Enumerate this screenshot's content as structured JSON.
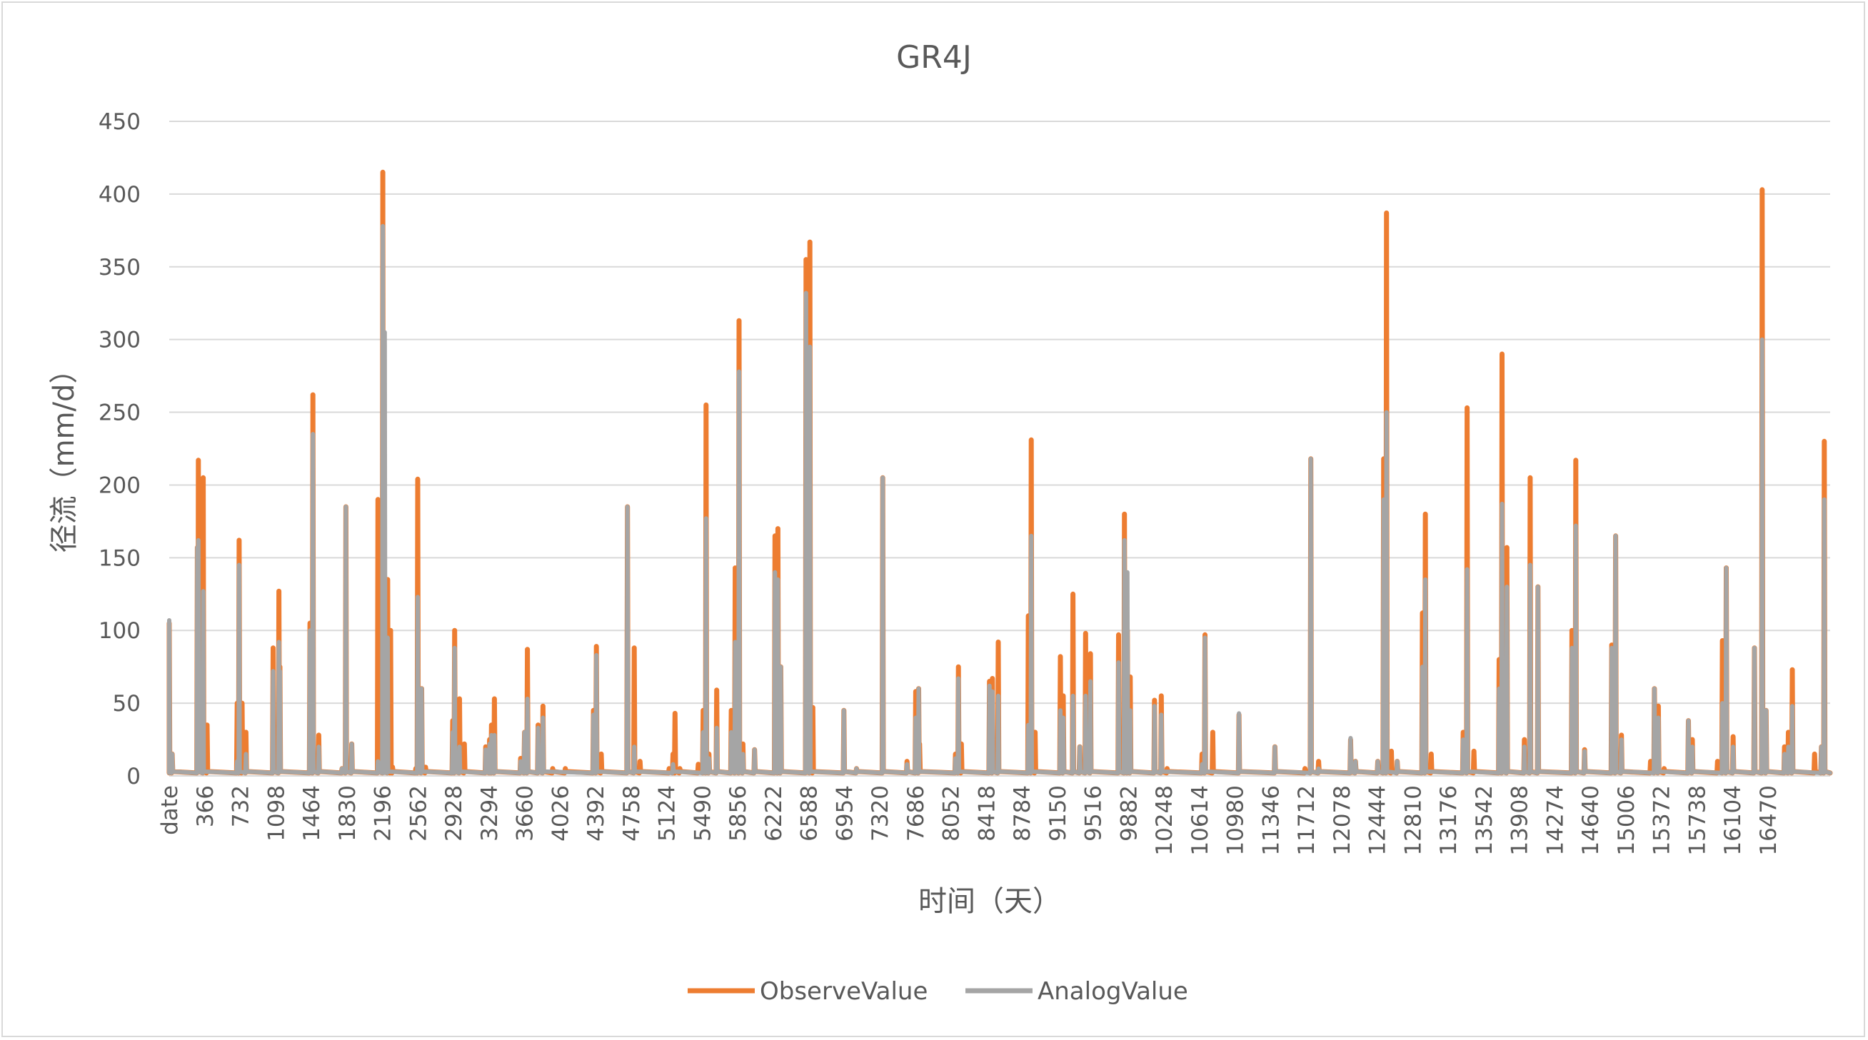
{
  "colors": {
    "observe": "#ED7D31",
    "analog": "#A5A5A5",
    "grid": "#D9D9D9",
    "text": "#595959"
  },
  "chart_data": {
    "type": "line",
    "title": "GR4J",
    "xlabel": "时间（天）",
    "ylabel": "径流（mm/d）",
    "ylim": [
      0,
      450
    ],
    "yticks": [
      0,
      50,
      100,
      150,
      200,
      250,
      300,
      350,
      400,
      450
    ],
    "xlim": [
      0,
      16800
    ],
    "xticks": [
      "date",
      "366",
      "732",
      "1098",
      "1464",
      "1830",
      "2196",
      "2562",
      "2928",
      "3294",
      "3660",
      "4026",
      "4392",
      "4758",
      "5124",
      "5490",
      "5856",
      "6222",
      "6588",
      "6954",
      "7320",
      "7686",
      "8052",
      "8418",
      "8784",
      "9150",
      "9516",
      "9882",
      "10248",
      "10614",
      "10980",
      "11346",
      "11712",
      "12078",
      "12444",
      "12810",
      "13176",
      "13542",
      "13908",
      "14274",
      "14640",
      "15006",
      "15372",
      "15738",
      "16104",
      "16470"
    ],
    "grid": "horizontal",
    "legend_position": "bottom",
    "series": [
      {
        "name": "ObserveValue",
        "peaks": [
          [
            0,
            105
          ],
          [
            30,
            15
          ],
          [
            290,
            157
          ],
          [
            300,
            217
          ],
          [
            350,
            205
          ],
          [
            390,
            35
          ],
          [
            700,
            50
          ],
          [
            720,
            162
          ],
          [
            750,
            50
          ],
          [
            790,
            30
          ],
          [
            1070,
            88
          ],
          [
            1130,
            127
          ],
          [
            1140,
            75
          ],
          [
            1450,
            105
          ],
          [
            1480,
            262
          ],
          [
            1540,
            28
          ],
          [
            1780,
            5
          ],
          [
            1820,
            185
          ],
          [
            1880,
            22
          ],
          [
            2150,
            190
          ],
          [
            2200,
            415
          ],
          [
            2250,
            135
          ],
          [
            2280,
            100
          ],
          [
            2300,
            6
          ],
          [
            2540,
            5
          ],
          [
            2560,
            204
          ],
          [
            2600,
            60
          ],
          [
            2640,
            6
          ],
          [
            2920,
            38
          ],
          [
            2940,
            100
          ],
          [
            2990,
            53
          ],
          [
            3040,
            22
          ],
          [
            3260,
            20
          ],
          [
            3300,
            25
          ],
          [
            3320,
            35
          ],
          [
            3350,
            53
          ],
          [
            3620,
            12
          ],
          [
            3660,
            30
          ],
          [
            3690,
            87
          ],
          [
            3800,
            35
          ],
          [
            3850,
            48
          ],
          [
            3950,
            5
          ],
          [
            4080,
            5
          ],
          [
            4370,
            45
          ],
          [
            4400,
            89
          ],
          [
            4450,
            15
          ],
          [
            4720,
            185
          ],
          [
            4790,
            88
          ],
          [
            4850,
            10
          ],
          [
            5150,
            5
          ],
          [
            5190,
            15
          ],
          [
            5210,
            43
          ],
          [
            5260,
            5
          ],
          [
            5450,
            8
          ],
          [
            5500,
            45
          ],
          [
            5530,
            255
          ],
          [
            5560,
            15
          ],
          [
            5640,
            59
          ],
          [
            5790,
            45
          ],
          [
            5830,
            143
          ],
          [
            5870,
            313
          ],
          [
            5910,
            22
          ],
          [
            6030,
            18
          ],
          [
            6240,
            165
          ],
          [
            6270,
            170
          ],
          [
            6300,
            75
          ],
          [
            6560,
            355
          ],
          [
            6600,
            367
          ],
          [
            6630,
            47
          ],
          [
            6950,
            45
          ],
          [
            7080,
            5
          ],
          [
            7350,
            205
          ],
          [
            7600,
            10
          ],
          [
            7690,
            58
          ],
          [
            7720,
            60
          ],
          [
            7730,
            22
          ],
          [
            8100,
            15
          ],
          [
            8130,
            75
          ],
          [
            8160,
            22
          ],
          [
            8450,
            65
          ],
          [
            8480,
            67
          ],
          [
            8540,
            92
          ],
          [
            8850,
            110
          ],
          [
            8880,
            231
          ],
          [
            8920,
            30
          ],
          [
            9180,
            82
          ],
          [
            9210,
            55
          ],
          [
            9310,
            125
          ],
          [
            9380,
            20
          ],
          [
            9440,
            98
          ],
          [
            9490,
            84
          ],
          [
            9780,
            97
          ],
          [
            9840,
            180
          ],
          [
            9870,
            100
          ],
          [
            9900,
            68
          ],
          [
            10150,
            52
          ],
          [
            10220,
            55
          ],
          [
            10280,
            5
          ],
          [
            10640,
            15
          ],
          [
            10670,
            97
          ],
          [
            10750,
            30
          ],
          [
            11020,
            42
          ],
          [
            11390,
            20
          ],
          [
            11700,
            5
          ],
          [
            11760,
            218
          ],
          [
            11840,
            10
          ],
          [
            12170,
            25
          ],
          [
            12220,
            10
          ],
          [
            12450,
            10
          ],
          [
            12510,
            218
          ],
          [
            12540,
            387
          ],
          [
            12590,
            17
          ],
          [
            12650,
            10
          ],
          [
            12910,
            112
          ],
          [
            12940,
            180
          ],
          [
            13000,
            15
          ],
          [
            13330,
            30
          ],
          [
            13370,
            253
          ],
          [
            13440,
            17
          ],
          [
            13700,
            80
          ],
          [
            13730,
            290
          ],
          [
            13780,
            157
          ],
          [
            13960,
            25
          ],
          [
            14020,
            205
          ],
          [
            14100,
            130
          ],
          [
            14450,
            100
          ],
          [
            14490,
            217
          ],
          [
            14580,
            18
          ],
          [
            14860,
            90
          ],
          [
            14900,
            165
          ],
          [
            14960,
            28
          ],
          [
            15260,
            10
          ],
          [
            15300,
            60
          ],
          [
            15340,
            48
          ],
          [
            15400,
            5
          ],
          [
            15650,
            38
          ],
          [
            15690,
            25
          ],
          [
            15950,
            10
          ],
          [
            16000,
            93
          ],
          [
            16040,
            143
          ],
          [
            16110,
            27
          ],
          [
            16330,
            88
          ],
          [
            16410,
            403
          ],
          [
            16450,
            45
          ],
          [
            16640,
            20
          ],
          [
            16680,
            30
          ],
          [
            16720,
            73
          ],
          [
            16950,
            15
          ],
          [
            17020,
            20
          ],
          [
            17050,
            230
          ]
        ]
      },
      {
        "name": "AnalogValue",
        "peaks": [
          [
            0,
            107
          ],
          [
            30,
            15
          ],
          [
            290,
            157
          ],
          [
            300,
            162
          ],
          [
            350,
            127
          ],
          [
            700,
            10
          ],
          [
            720,
            145
          ],
          [
            790,
            15
          ],
          [
            1070,
            72
          ],
          [
            1130,
            92
          ],
          [
            1140,
            72
          ],
          [
            1450,
            100
          ],
          [
            1480,
            235
          ],
          [
            1540,
            20
          ],
          [
            1780,
            5
          ],
          [
            1820,
            185
          ],
          [
            1880,
            22
          ],
          [
            2150,
            10
          ],
          [
            2200,
            378
          ],
          [
            2220,
            305
          ],
          [
            2250,
            95
          ],
          [
            2560,
            123
          ],
          [
            2600,
            60
          ],
          [
            2920,
            30
          ],
          [
            2940,
            88
          ],
          [
            2990,
            20
          ],
          [
            3260,
            18
          ],
          [
            3300,
            22
          ],
          [
            3320,
            28
          ],
          [
            3350,
            28
          ],
          [
            3620,
            10
          ],
          [
            3660,
            30
          ],
          [
            3690,
            53
          ],
          [
            3800,
            33
          ],
          [
            3850,
            40
          ],
          [
            4370,
            42
          ],
          [
            4400,
            83
          ],
          [
            4720,
            185
          ],
          [
            4790,
            20
          ],
          [
            5190,
            8
          ],
          [
            5500,
            30
          ],
          [
            5530,
            177
          ],
          [
            5560,
            12
          ],
          [
            5640,
            33
          ],
          [
            5790,
            30
          ],
          [
            5830,
            92
          ],
          [
            5870,
            278
          ],
          [
            5910,
            15
          ],
          [
            6030,
            18
          ],
          [
            6240,
            140
          ],
          [
            6270,
            135
          ],
          [
            6300,
            75
          ],
          [
            6560,
            332
          ],
          [
            6600,
            295
          ],
          [
            6950,
            45
          ],
          [
            7080,
            5
          ],
          [
            7350,
            205
          ],
          [
            7600,
            8
          ],
          [
            7690,
            40
          ],
          [
            7720,
            60
          ],
          [
            8100,
            12
          ],
          [
            8130,
            67
          ],
          [
            8450,
            62
          ],
          [
            8480,
            58
          ],
          [
            8540,
            55
          ],
          [
            8850,
            35
          ],
          [
            8880,
            165
          ],
          [
            9180,
            45
          ],
          [
            9210,
            40
          ],
          [
            9310,
            55
          ],
          [
            9380,
            20
          ],
          [
            9440,
            55
          ],
          [
            9490,
            65
          ],
          [
            9780,
            78
          ],
          [
            9840,
            162
          ],
          [
            9870,
            140
          ],
          [
            9900,
            45
          ],
          [
            10150,
            48
          ],
          [
            10220,
            42
          ],
          [
            10640,
            8
          ],
          [
            10670,
            95
          ],
          [
            11020,
            43
          ],
          [
            11390,
            20
          ],
          [
            11760,
            218
          ],
          [
            11840,
            5
          ],
          [
            12170,
            26
          ],
          [
            12220,
            10
          ],
          [
            12450,
            10
          ],
          [
            12510,
            190
          ],
          [
            12540,
            250
          ],
          [
            12650,
            10
          ],
          [
            12910,
            75
          ],
          [
            12940,
            135
          ],
          [
            13330,
            25
          ],
          [
            13370,
            142
          ],
          [
            13700,
            60
          ],
          [
            13730,
            187
          ],
          [
            13780,
            130
          ],
          [
            13960,
            20
          ],
          [
            14020,
            145
          ],
          [
            14100,
            130
          ],
          [
            14450,
            88
          ],
          [
            14490,
            172
          ],
          [
            14580,
            17
          ],
          [
            14860,
            88
          ],
          [
            14900,
            165
          ],
          [
            14960,
            25
          ],
          [
            15300,
            60
          ],
          [
            15340,
            40
          ],
          [
            15650,
            38
          ],
          [
            15690,
            20
          ],
          [
            16000,
            50
          ],
          [
            16040,
            143
          ],
          [
            16110,
            20
          ],
          [
            16330,
            88
          ],
          [
            16410,
            300
          ],
          [
            16450,
            45
          ],
          [
            16640,
            15
          ],
          [
            16680,
            20
          ],
          [
            16720,
            48
          ],
          [
            17020,
            20
          ],
          [
            17050,
            190
          ]
        ]
      }
    ]
  }
}
